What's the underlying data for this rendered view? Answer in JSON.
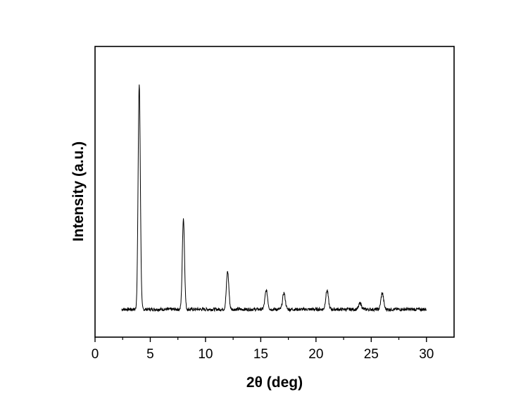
{
  "chart_data": {
    "type": "line",
    "title": "",
    "xlabel": "2θ (deg)",
    "ylabel": "Intensity (a.u.)",
    "xlim": [
      0,
      32.5
    ],
    "ylim": [
      0,
      115
    ],
    "xticks": [
      0,
      5,
      10,
      15,
      20,
      25,
      30
    ],
    "xtick_labels": [
      "0",
      "5",
      "10",
      "15",
      "20",
      "25",
      "30"
    ],
    "y_tick_labels_shown": false,
    "grid": false,
    "legend": "none",
    "line_color": "#000000",
    "x_range": [
      2.4,
      30
    ],
    "baseline": 11,
    "peaks": [
      {
        "x": 4.0,
        "y": 100,
        "width": 0.1
      },
      {
        "x": 8.0,
        "y": 47,
        "width": 0.1
      },
      {
        "x": 12.0,
        "y": 26,
        "width": 0.11
      },
      {
        "x": 15.5,
        "y": 18.5,
        "width": 0.12
      },
      {
        "x": 17.1,
        "y": 17.5,
        "width": 0.12
      },
      {
        "x": 21.0,
        "y": 18.5,
        "width": 0.12
      },
      {
        "x": 24.0,
        "y": 13.5,
        "width": 0.12
      },
      {
        "x": 26.0,
        "y": 17.5,
        "width": 0.12
      }
    ]
  }
}
